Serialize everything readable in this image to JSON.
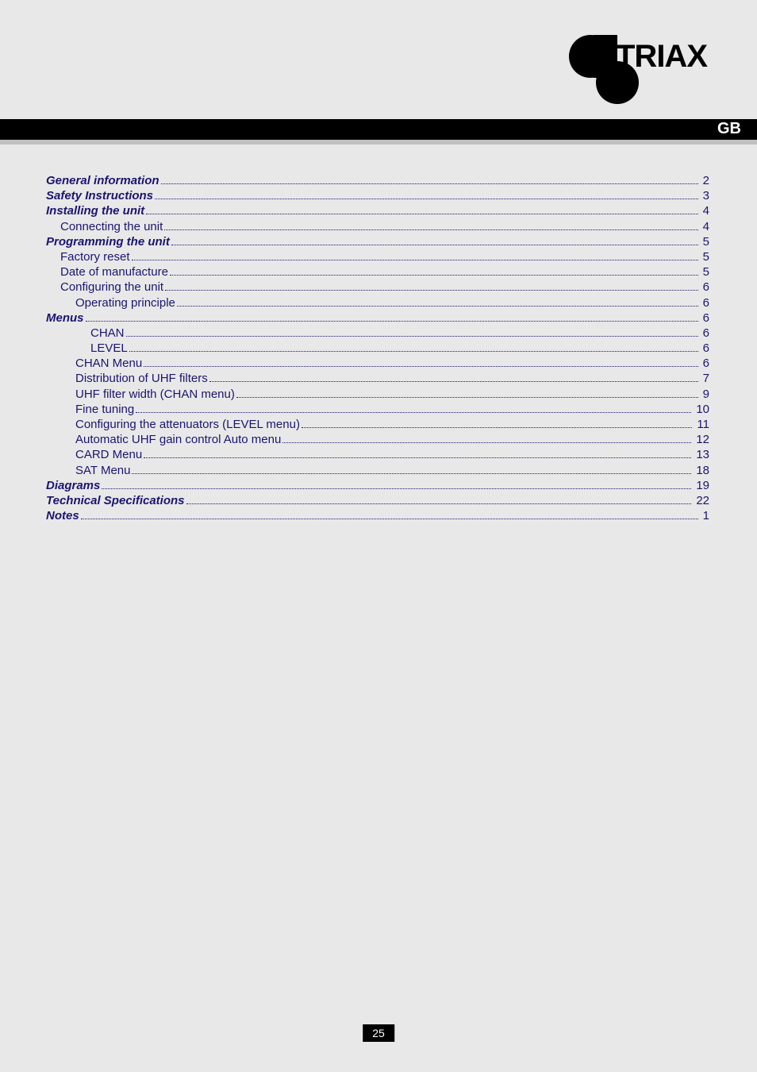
{
  "brand": "TRIAX",
  "language_badge": "GB",
  "page_number": "25",
  "colors": {
    "page_bg": "#e8e8e8",
    "toc_text": "#1a1570",
    "bar_black": "#000000",
    "bar_gray": "#c0c0c0",
    "logo_black": "#000000"
  },
  "toc": [
    {
      "label": "General information",
      "page": "2",
      "indent": 0,
      "bold": true
    },
    {
      "label": "Safety Instructions",
      "page": "3",
      "indent": 0,
      "bold": true
    },
    {
      "label": "Installing the unit",
      "page": "4",
      "indent": 0,
      "bold": true
    },
    {
      "label": "Connecting the unit",
      "page": "4",
      "indent": 1,
      "bold": false
    },
    {
      "label": "Programming the unit",
      "page": "5",
      "indent": 0,
      "bold": true
    },
    {
      "label": "Factory reset",
      "page": "5",
      "indent": 1,
      "bold": false
    },
    {
      "label": "Date of manufacture",
      "page": "5",
      "indent": 1,
      "bold": false
    },
    {
      "label": "Configuring the unit",
      "page": "6",
      "indent": 1,
      "bold": false
    },
    {
      "label": "Operating principle",
      "page": "6",
      "indent": 2,
      "bold": false
    },
    {
      "label": "Menus",
      "page": "6",
      "indent": 0,
      "bold": true
    },
    {
      "label": "CHAN",
      "page": "6",
      "indent": 3,
      "bold": false
    },
    {
      "label": "LEVEL",
      "page": "6",
      "indent": 3,
      "bold": false
    },
    {
      "label": "CHAN Menu",
      "page": "6",
      "indent": 2,
      "bold": false
    },
    {
      "label": "Distribution of UHF filters",
      "page": "7",
      "indent": 2,
      "bold": false
    },
    {
      "label": "UHF filter width (CHAN menu)",
      "page": "9",
      "indent": 2,
      "bold": false
    },
    {
      "label": "Fine tuning",
      "page": "10",
      "indent": 2,
      "bold": false
    },
    {
      "label": "Configuring the attenuators (LEVEL menu)",
      "page": "11",
      "indent": 2,
      "bold": false
    },
    {
      "label": "Automatic UHF gain control Auto menu",
      "page": "12",
      "indent": 2,
      "bold": false
    },
    {
      "label": "CARD Menu",
      "page": "13",
      "indent": 2,
      "bold": false
    },
    {
      "label": "SAT Menu",
      "page": "18",
      "indent": 2,
      "bold": false
    },
    {
      "label": "Diagrams",
      "page": "19",
      "indent": 0,
      "bold": true
    },
    {
      "label": "Technical Specifications",
      "page": "22",
      "indent": 0,
      "bold": true
    },
    {
      "label": "Notes",
      "page": "1",
      "indent": 0,
      "bold": true
    }
  ]
}
